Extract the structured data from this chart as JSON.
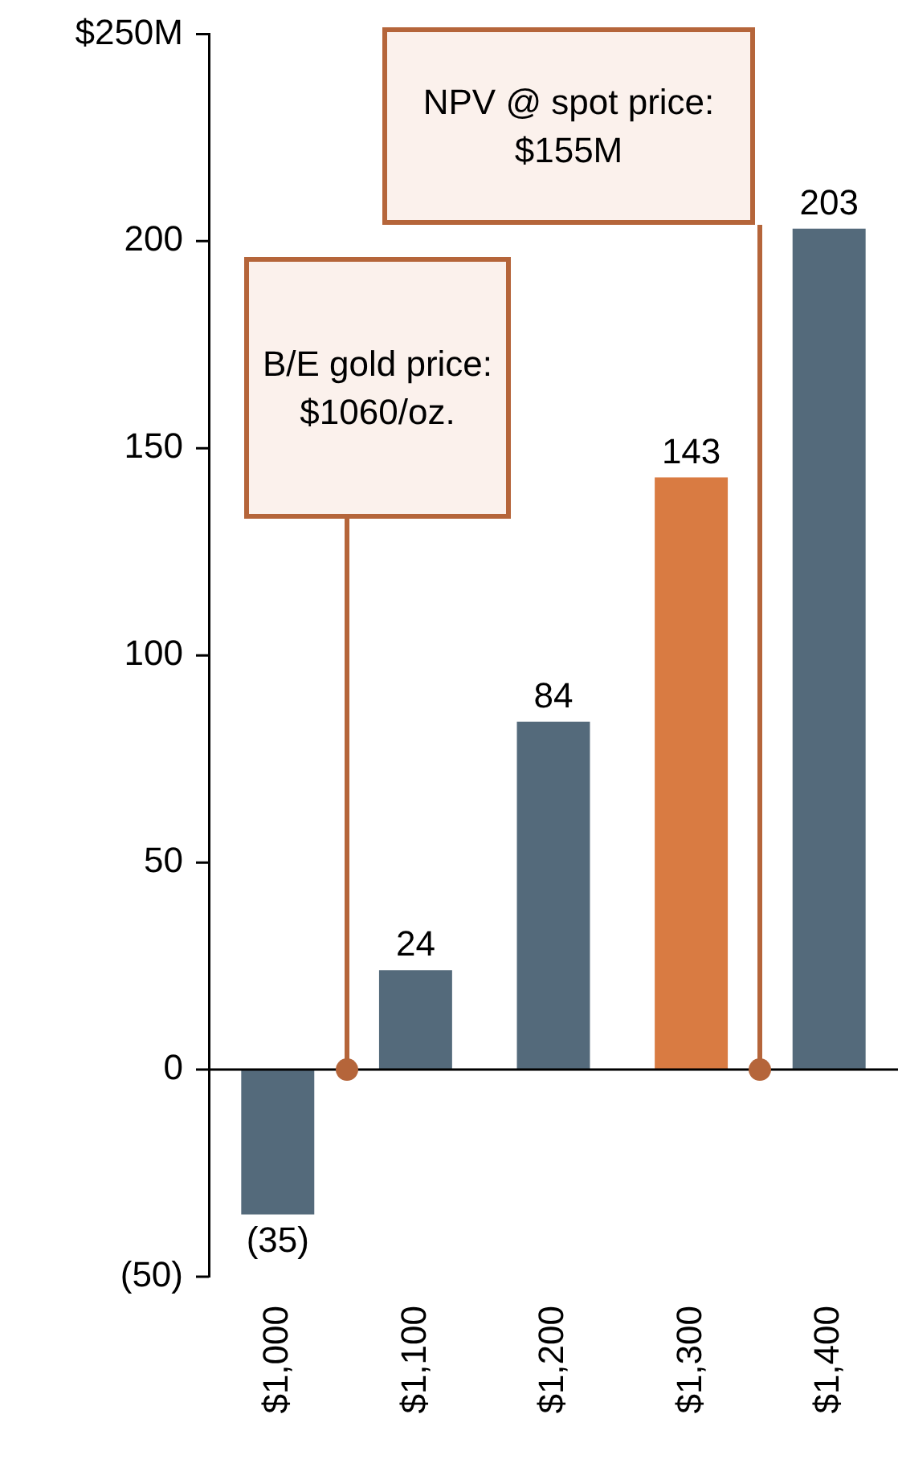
{
  "chart_data": {
    "type": "bar",
    "categories": [
      "$1,000",
      "$1,100",
      "$1,200",
      "$1,300",
      "$1,400"
    ],
    "values": [
      -35,
      24,
      84,
      143,
      203
    ],
    "colors": [
      "#546a7b",
      "#546a7b",
      "#546a7b",
      "#d97b42",
      "#546a7b"
    ],
    "value_labels": [
      "(35)",
      "24",
      "84",
      "143",
      "203"
    ],
    "ylim": [
      -50,
      250
    ],
    "yticks": [
      {
        "value": -50,
        "label": "(50)"
      },
      0,
      50,
      100,
      150,
      200,
      {
        "value": 250,
        "label": "$250M"
      }
    ],
    "grid": false,
    "legend": false,
    "ref_lines": [
      {
        "axis": "y",
        "value": 0,
        "color": "#000000"
      }
    ],
    "annotations": [
      "B/E gold price: $1060/oz.",
      "NPV @ spot price: $155M"
    ]
  }
}
